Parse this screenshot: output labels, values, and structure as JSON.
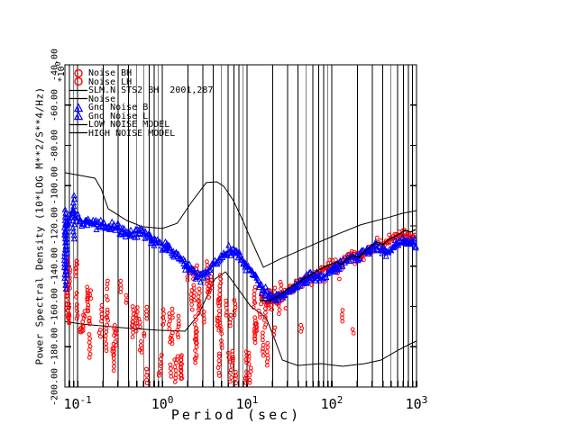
{
  "colors": {
    "red": "#ff0000",
    "blue": "#0000ff",
    "black": "#000000",
    "background": "#ffffff"
  },
  "legend": {
    "items": [
      {
        "symbol": "circle",
        "color": "#ff0000",
        "label": "Noise BH"
      },
      {
        "symbol": "circle",
        "color": "#ff0000",
        "label": "Noise LH"
      },
      {
        "symbol": "line",
        "color": "#000000",
        "label": "SLM.N.STS2 BH  2001,287"
      },
      {
        "symbol": "line",
        "color": "#000000",
        "label": "Noise"
      },
      {
        "symbol": "triangle",
        "color": "#0000ff",
        "label": "Gnd Noise B"
      },
      {
        "symbol": "triangle",
        "color": "#0000ff",
        "label": "Gnd Noise L"
      },
      {
        "symbol": "line",
        "color": "#000000",
        "label": "LOW NOISE MODEL"
      },
      {
        "symbol": "line",
        "color": "#000000",
        "label": "HIGH NOISE MODEL"
      }
    ]
  },
  "axes": {
    "x": {
      "label": "Period (sec)",
      "ticks": [
        {
          "base": "10",
          "exp": "-1",
          "value": 0.1
        },
        {
          "base": "10",
          "exp": "0",
          "value": 1
        },
        {
          "base": "10",
          "exp": "1",
          "value": 10
        },
        {
          "base": "10",
          "exp": "2",
          "value": 100
        },
        {
          "base": "10",
          "exp": "3",
          "value": 1000
        }
      ]
    },
    "y": {
      "label": "Power Spectral Density (10*LOG M**2/S**4/Hz)",
      "multiplier": {
        "base": "*10",
        "exp": "0"
      },
      "tick_labels": [
        "-40.00",
        "-60.00",
        "-80.00",
        "-100.00",
        "-120.00",
        "-140.00",
        "-160.00",
        "-180.00",
        "-200.00"
      ],
      "tick_start": -40,
      "tick_step": -20
    }
  },
  "chart_data": {
    "type": "line",
    "title": "",
    "xlabel": "Period (sec)",
    "ylabel": "Power Spectral Density (10*LOG M**2/S**4/Hz)",
    "xscale": "log",
    "xlim": [
      0.0708,
      1000
    ],
    "ylim": [
      -200,
      -40
    ],
    "grid": "vertical-log-minor",
    "legend_position": "top-left-inside",
    "series": [
      {
        "name": "HIGH NOISE MODEL",
        "kind": "line",
        "color": "#000000",
        "width": 1,
        "points": [
          [
            0.071,
            -93.6
          ],
          [
            0.11,
            -95.0
          ],
          [
            0.16,
            -96.3
          ],
          [
            0.19,
            -101.7
          ],
          [
            0.23,
            -111.5
          ],
          [
            0.38,
            -117.3
          ],
          [
            0.58,
            -120.4
          ],
          [
            1.0,
            -121.3
          ],
          [
            1.5,
            -118.7
          ],
          [
            2.2,
            -108.4
          ],
          [
            3.3,
            -98.5
          ],
          [
            4.4,
            -98.1
          ],
          [
            5.3,
            -100.3
          ],
          [
            6.8,
            -107.0
          ],
          [
            8.7,
            -116.4
          ],
          [
            11.6,
            -128.5
          ],
          [
            15.6,
            -140.5
          ],
          [
            24.4,
            -136.5
          ],
          [
            50.6,
            -130.7
          ],
          [
            105,
            -124.9
          ],
          [
            218,
            -119.5
          ],
          [
            456,
            -115.9
          ],
          [
            690,
            -113.7
          ],
          [
            1000,
            -112.4
          ]
        ]
      },
      {
        "name": "LOW NOISE MODEL",
        "kind": "line",
        "color": "#000000",
        "width": 1,
        "points": [
          [
            0.071,
            -167.4
          ],
          [
            0.11,
            -168.7
          ],
          [
            0.19,
            -169.6
          ],
          [
            0.42,
            -170.9
          ],
          [
            0.88,
            -171.8
          ],
          [
            1.85,
            -172.3
          ],
          [
            2.67,
            -164.2
          ],
          [
            4.15,
            -146.4
          ],
          [
            5.56,
            -142.8
          ],
          [
            7.45,
            -149.9
          ],
          [
            11.0,
            -159.8
          ],
          [
            16.8,
            -165.6
          ],
          [
            21.4,
            -176.8
          ],
          [
            26.1,
            -186.6
          ],
          [
            39.5,
            -189.3
          ],
          [
            73.2,
            -188.4
          ],
          [
            134,
            -189.7
          ],
          [
            247,
            -188.4
          ],
          [
            382,
            -186.6
          ],
          [
            584,
            -182.1
          ],
          [
            888,
            -178.1
          ],
          [
            1000,
            -177.2
          ]
        ]
      },
      {
        "name": "Noise BH/LH scatter",
        "kind": "clusters-circles",
        "color": "#ff0000",
        "clusters": [
          [
            0.074,
            0.1,
            -152,
            16,
            55
          ],
          [
            0.105,
            0.14,
            -165,
            13,
            25
          ],
          [
            0.12,
            0.2,
            -172,
            18,
            45
          ],
          [
            0.2,
            0.5,
            -170,
            20,
            70
          ],
          [
            0.5,
            1.28,
            -179,
            20,
            60
          ],
          [
            1.28,
            2.36,
            -179,
            15,
            40
          ],
          [
            1.9,
            4.9,
            -153,
            10,
            70
          ],
          [
            2.4,
            4.9,
            -180,
            18,
            40
          ],
          [
            4.9,
            10.3,
            -177,
            20,
            50
          ],
          [
            6.3,
            11.0,
            -193,
            10,
            25
          ],
          [
            10.3,
            18.9,
            -172,
            15,
            40
          ],
          [
            10.5,
            30,
            -157,
            4,
            50
          ],
          [
            19,
            220,
            -170,
            8,
            20
          ]
        ]
      },
      {
        "name": "Noise BH/LH band",
        "kind": "band-circles",
        "color": "#ff0000",
        "points": [
          [
            14.8,
            -156.2
          ],
          [
            17.2,
            -158.9
          ],
          [
            20.9,
            -157.1
          ],
          [
            25.5,
            -154.4
          ],
          [
            31.2,
            -151.7
          ],
          [
            38.1,
            -149.5
          ],
          [
            46.5,
            -147.2
          ],
          [
            56.7,
            -145.0
          ],
          [
            69.2,
            -143.2
          ],
          [
            84.5,
            -141.0
          ],
          [
            103,
            -138.8
          ],
          [
            120,
            -140.1
          ],
          [
            138,
            -137.4
          ],
          [
            168,
            -135.2
          ],
          [
            205,
            -136.5
          ],
          [
            237,
            -133.4
          ],
          [
            289,
            -130.7
          ],
          [
            336,
            -128.9
          ],
          [
            391,
            -130.3
          ],
          [
            455,
            -128.0
          ],
          [
            529,
            -126.7
          ],
          [
            616,
            -125.4
          ],
          [
            717,
            -124.0
          ],
          [
            834,
            -124.9
          ],
          [
            971,
            -123.6
          ]
        ]
      },
      {
        "name": "Gnd Noise B/L band",
        "kind": "band-triangles",
        "color": "#0000ff",
        "edge_streaks": [
          {
            "p": 0.0712,
            "db_top": -112,
            "db_bottom": -152
          },
          {
            "p": 0.0735,
            "db_top": -116,
            "db_bottom": -146
          },
          {
            "p": 0.0895,
            "db_top": -105,
            "db_bottom": -128
          }
        ],
        "points": [
          [
            0.071,
            -123.0
          ],
          [
            0.078,
            -117.3
          ],
          [
            0.089,
            -111.0
          ],
          [
            0.095,
            -116.4
          ],
          [
            0.125,
            -118.2
          ],
          [
            0.17,
            -119.1
          ],
          [
            0.23,
            -120.0
          ],
          [
            0.31,
            -121.8
          ],
          [
            0.4,
            -124.0
          ],
          [
            0.5,
            -123.1
          ],
          [
            0.61,
            -123.6
          ],
          [
            0.74,
            -126.7
          ],
          [
            0.9,
            -128.9
          ],
          [
            1.1,
            -130.3
          ],
          [
            1.34,
            -132.9
          ],
          [
            1.63,
            -136.1
          ],
          [
            1.98,
            -140.1
          ],
          [
            2.42,
            -143.7
          ],
          [
            2.8,
            -145.4
          ],
          [
            3.25,
            -143.7
          ],
          [
            3.85,
            -140.1
          ],
          [
            4.57,
            -136.5
          ],
          [
            5.43,
            -133.4
          ],
          [
            6.29,
            -132.0
          ],
          [
            7.28,
            -133.4
          ],
          [
            8.45,
            -136.1
          ],
          [
            9.77,
            -139.2
          ],
          [
            11.6,
            -143.2
          ],
          [
            13.7,
            -148.6
          ],
          [
            15.9,
            -152.2
          ],
          [
            18.4,
            -154.8
          ],
          [
            21.4,
            -156.2
          ],
          [
            24.8,
            -155.3
          ],
          [
            29.3,
            -153.5
          ],
          [
            35.8,
            -150.4
          ],
          [
            43.7,
            -148.1
          ],
          [
            53.2,
            -145.9
          ],
          [
            64.6,
            -144.6
          ],
          [
            78.5,
            -145.9
          ],
          [
            95.4,
            -142.3
          ],
          [
            116,
            -139.7
          ],
          [
            141,
            -137.9
          ],
          [
            164,
            -135.6
          ],
          [
            189,
            -137.0
          ],
          [
            218,
            -134.3
          ],
          [
            265,
            -132.1
          ],
          [
            316,
            -130.3
          ],
          [
            368,
            -131.6
          ],
          [
            437,
            -133.4
          ],
          [
            506,
            -131.6
          ],
          [
            584,
            -129.4
          ],
          [
            675,
            -128.5
          ],
          [
            779,
            -129.4
          ],
          [
            900,
            -128.5
          ],
          [
            977,
            -128.9
          ]
        ]
      },
      {
        "name": "SLM.N.STS2 BH 2001,287",
        "kind": "line",
        "color": "#000000",
        "width": 1.4,
        "points": [
          [
            14.1,
            -157.1
          ],
          [
            18.9,
            -157.1
          ],
          [
            25.5,
            -153.5
          ],
          [
            34.0,
            -149.9
          ],
          [
            46.5,
            -146.3
          ],
          [
            62.0,
            -143.2
          ],
          [
            84.5,
            -140.1
          ],
          [
            113,
            -137.9
          ],
          [
            131,
            -139.2
          ],
          [
            149,
            -136.5
          ],
          [
            181,
            -134.7
          ],
          [
            211,
            -135.6
          ],
          [
            244,
            -132.5
          ],
          [
            296,
            -129.8
          ],
          [
            344,
            -128.0
          ],
          [
            400,
            -129.4
          ],
          [
            464,
            -126.7
          ],
          [
            541,
            -125.4
          ],
          [
            629,
            -124.0
          ],
          [
            732,
            -122.2
          ],
          [
            852,
            -123.1
          ],
          [
            971,
            -121.8
          ]
        ]
      }
    ]
  }
}
